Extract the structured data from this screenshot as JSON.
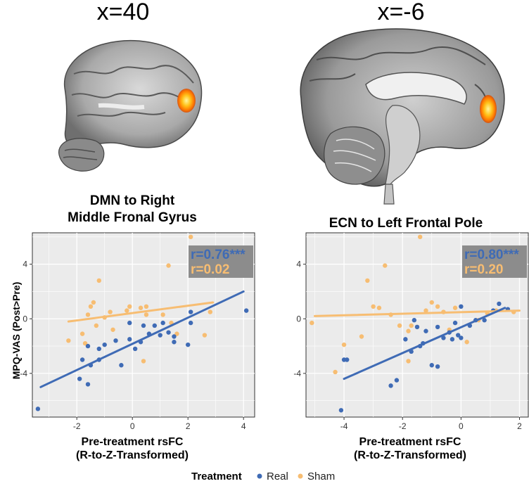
{
  "colors": {
    "real": "#3f6bb5",
    "sham": "#f7bd72",
    "panel_bg": "#ebebeb",
    "annot_bg": "#8c8c8c",
    "grid": "#ffffff"
  },
  "brain_labels": [
    "x=40",
    "x=-6"
  ],
  "legend": {
    "title": "Treatment",
    "items": [
      "Real",
      "Sham"
    ]
  },
  "ylabel": "MPQ-VAS (Post>Pre)",
  "chart_data": [
    {
      "type": "scatter",
      "title_lines": [
        "DMN to Right",
        "Middle Fronal Gyrus"
      ],
      "xlabel_lines": [
        "Pre-treatment rsFC",
        "(R-to-Z-Transformed)"
      ],
      "xlim": [
        -3.6,
        4.4
      ],
      "ylim": [
        -7.2,
        6.3
      ],
      "xticks": [
        -2,
        0,
        2,
        4
      ],
      "yticks": [
        -4,
        0,
        4
      ],
      "annotations": [
        {
          "text": "r=0.76***",
          "series": "Real"
        },
        {
          "text": "r=0.02",
          "series": "Sham"
        }
      ],
      "series": [
        {
          "name": "Real",
          "line": [
            [
              -3.3,
              -5.0
            ],
            [
              4.0,
              2.0
            ]
          ],
          "points": [
            [
              -3.4,
              -6.6
            ],
            [
              -1.9,
              -4.4
            ],
            [
              -1.8,
              -3.0
            ],
            [
              -1.6,
              -4.8
            ],
            [
              -1.6,
              -2.0
            ],
            [
              -1.5,
              -3.4
            ],
            [
              -1.2,
              -3.0
            ],
            [
              -1.2,
              -2.2
            ],
            [
              -1.0,
              -1.9
            ],
            [
              -0.6,
              -1.6
            ],
            [
              -0.4,
              -3.4
            ],
            [
              -0.1,
              -0.3
            ],
            [
              -0.1,
              -1.5
            ],
            [
              0.1,
              -2.2
            ],
            [
              0.3,
              -1.7
            ],
            [
              0.4,
              -0.5
            ],
            [
              0.6,
              -1.1
            ],
            [
              0.8,
              -0.5
            ],
            [
              1.0,
              -1.2
            ],
            [
              1.1,
              -0.3
            ],
            [
              1.3,
              -1.0
            ],
            [
              1.5,
              -1.3
            ],
            [
              1.5,
              -1.7
            ],
            [
              2.0,
              -1.9
            ],
            [
              2.1,
              0.5
            ],
            [
              2.1,
              -0.3
            ],
            [
              4.1,
              0.6
            ]
          ]
        },
        {
          "name": "Sham",
          "line": [
            [
              -2.3,
              -0.2
            ],
            [
              2.9,
              1.2
            ]
          ],
          "points": [
            [
              -2.3,
              -1.6
            ],
            [
              -1.8,
              -1.1
            ],
            [
              -1.7,
              -1.8
            ],
            [
              -1.6,
              0.3
            ],
            [
              -1.5,
              0.9
            ],
            [
              -1.4,
              1.2
            ],
            [
              -1.3,
              -0.5
            ],
            [
              -1.2,
              2.8
            ],
            [
              -1.0,
              0.1
            ],
            [
              -0.8,
              0.5
            ],
            [
              -0.7,
              -0.8
            ],
            [
              -0.2,
              0.6
            ],
            [
              -0.1,
              0.9
            ],
            [
              0.3,
              0.8
            ],
            [
              0.4,
              -3.1
            ],
            [
              0.5,
              0.3
            ],
            [
              0.5,
              0.9
            ],
            [
              1.1,
              0.3
            ],
            [
              1.3,
              3.9
            ],
            [
              1.4,
              -0.3
            ],
            [
              1.6,
              -1.1
            ],
            [
              2.1,
              6.0
            ],
            [
              2.6,
              -1.2
            ],
            [
              2.8,
              0.5
            ]
          ]
        }
      ]
    },
    {
      "type": "scatter",
      "title_lines": [
        "ECN to Left Frontal Pole"
      ],
      "xlabel_lines": [
        "Pre-treatment rsFC",
        "(R-to-Z-Transformed)"
      ],
      "xlim": [
        -5.3,
        2.3
      ],
      "ylim": [
        -7.2,
        6.3
      ],
      "xticks": [
        -4,
        -2,
        0,
        2
      ],
      "yticks": [
        -4,
        0,
        4
      ],
      "annotations": [
        {
          "text": "r=0.80***",
          "series": "Real"
        },
        {
          "text": "r=0.20",
          "series": "Sham"
        }
      ],
      "series": [
        {
          "name": "Real",
          "line": [
            [
              -4.0,
              -4.4
            ],
            [
              1.5,
              0.8
            ]
          ],
          "points": [
            [
              -4.1,
              -6.7
            ],
            [
              -4.0,
              -3.0
            ],
            [
              -3.9,
              -3.0
            ],
            [
              -2.4,
              -4.9
            ],
            [
              -2.2,
              -4.5
            ],
            [
              -1.9,
              -1.5
            ],
            [
              -1.7,
              -2.4
            ],
            [
              -1.6,
              -0.1
            ],
            [
              -1.5,
              -0.6
            ],
            [
              -1.4,
              -2.0
            ],
            [
              -1.3,
              -1.8
            ],
            [
              -1.2,
              -0.9
            ],
            [
              -1.0,
              -3.4
            ],
            [
              -0.8,
              -0.6
            ],
            [
              -0.8,
              -3.5
            ],
            [
              -0.6,
              -1.4
            ],
            [
              -0.4,
              -1.0
            ],
            [
              -0.3,
              -1.5
            ],
            [
              -0.2,
              -0.3
            ],
            [
              -0.1,
              -1.2
            ],
            [
              0.0,
              -1.4
            ],
            [
              0.0,
              0.9
            ],
            [
              0.3,
              -0.5
            ],
            [
              0.5,
              -0.1
            ],
            [
              0.8,
              -0.1
            ],
            [
              1.1,
              0.6
            ],
            [
              1.3,
              1.1
            ],
            [
              1.6,
              0.7
            ]
          ]
        },
        {
          "name": "Sham",
          "line": [
            [
              -5.0,
              0.2
            ],
            [
              2.0,
              0.6
            ]
          ],
          "points": [
            [
              -5.1,
              -0.3
            ],
            [
              -4.3,
              -3.9
            ],
            [
              -4.0,
              -1.9
            ],
            [
              -3.4,
              -1.3
            ],
            [
              -3.2,
              2.8
            ],
            [
              -3.0,
              0.9
            ],
            [
              -2.8,
              0.8
            ],
            [
              -2.6,
              3.9
            ],
            [
              -2.4,
              0.3
            ],
            [
              -2.1,
              -0.5
            ],
            [
              -1.8,
              -3.1
            ],
            [
              -1.8,
              -0.9
            ],
            [
              -1.7,
              -0.5
            ],
            [
              -1.5,
              -0.6
            ],
            [
              -1.4,
              6.0
            ],
            [
              -1.2,
              0.6
            ],
            [
              -1.0,
              1.2
            ],
            [
              -0.8,
              0.9
            ],
            [
              -0.6,
              0.5
            ],
            [
              -0.4,
              -0.8
            ],
            [
              -0.2,
              0.8
            ],
            [
              0.2,
              -1.7
            ],
            [
              0.6,
              -0.1
            ],
            [
              0.9,
              0.4
            ],
            [
              1.2,
              0.6
            ],
            [
              1.8,
              0.5
            ]
          ]
        }
      ]
    }
  ]
}
